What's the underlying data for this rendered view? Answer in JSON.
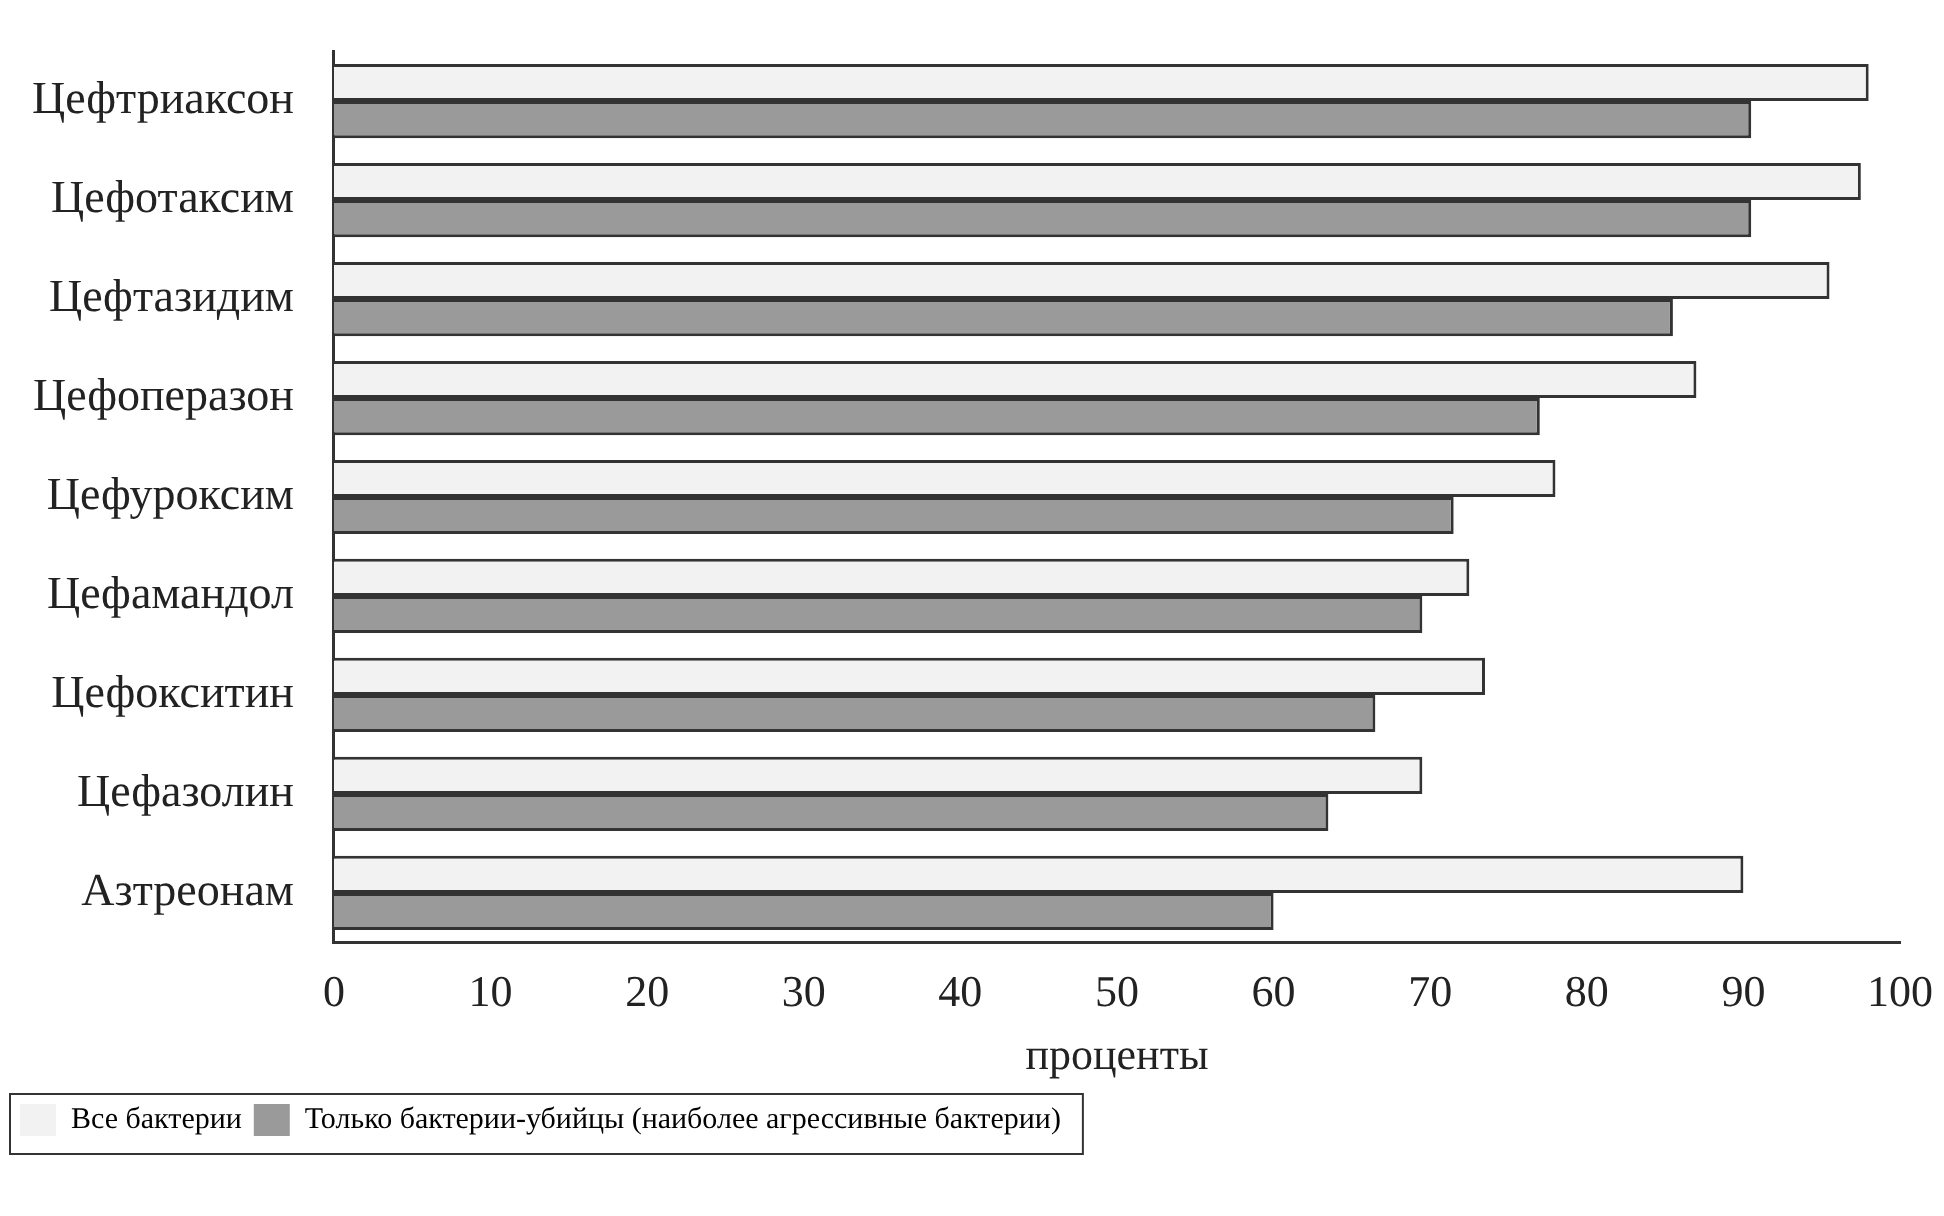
{
  "chart_data": {
    "type": "bar",
    "orientation": "horizontal",
    "xlabel": "проценты",
    "categories": [
      "Цефтриаксон",
      "Цефотаксим",
      "Цефтазидим",
      "Цефоперазон",
      "Цефуроксим",
      "Цефамандол",
      "Цефокситин",
      "Цефазолин",
      "Азтреонам"
    ],
    "series": [
      {
        "name": "Все бактерии",
        "color": "#f2f2f2",
        "values": [
          98,
          97.5,
          95.5,
          87,
          78,
          72.5,
          73.5,
          69.5,
          90
        ]
      },
      {
        "name": "Только бактерии-убийцы (наиболее агрессивные бактерии)",
        "color": "#9a9a9a",
        "values": [
          90.5,
          90.5,
          85.5,
          77,
          71.5,
          69.5,
          66.5,
          63.5,
          60
        ]
      }
    ],
    "xlim": [
      0,
      100
    ],
    "xticks": [
      0,
      10,
      20,
      30,
      40,
      50,
      60,
      70,
      80,
      90,
      100
    ],
    "grid": false,
    "legend": "bottom left"
  }
}
